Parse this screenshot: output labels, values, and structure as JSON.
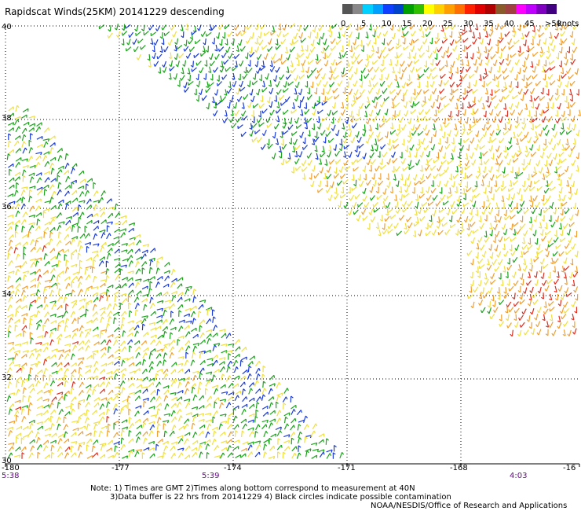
{
  "title": "Rapidscat Winds(25KM) 20141229 descending",
  "legend": {
    "labels": [
      "0",
      "5",
      "10",
      "15",
      "20",
      "25",
      "30",
      "35",
      "40",
      "45",
      ">50"
    ],
    "units": "knots",
    "colors": [
      "#555555",
      "#888888",
      "#00d0ff",
      "#00a0ff",
      "#1040ff",
      "#0044cc",
      "#00a000",
      "#30c000",
      "#ffff00",
      "#ffd000",
      "#ffa000",
      "#ff7000",
      "#ff2000",
      "#e00000",
      "#b00000",
      "#8b5a2b",
      "#a04040",
      "#ff00ff",
      "#c000ff",
      "#8000c0",
      "#400080"
    ]
  },
  "lat_labels": [
    "40",
    "38",
    "36",
    "34",
    "32",
    "30"
  ],
  "lon_labels": [
    "-180",
    "-177",
    "-174",
    "-171",
    "-168",
    "-16"
  ],
  "time_labels": [
    "5:38",
    "5:39",
    "4:03"
  ],
  "notes": [
    "Note: 1) Times are GMT 2)Times along bottom correspond to measurement at 40N",
    "3)Data buffer is 22 hrs from 20141229 4) Black circles indicate possible contamination",
    "NOAA/NESDIS/Office of Research and Applications"
  ],
  "wind_colors": {
    "blue": "#1a3cd8",
    "green": "#1aa51a",
    "yellow": "#f0e040",
    "orange": "#f0a030",
    "red": "#e03020"
  }
}
